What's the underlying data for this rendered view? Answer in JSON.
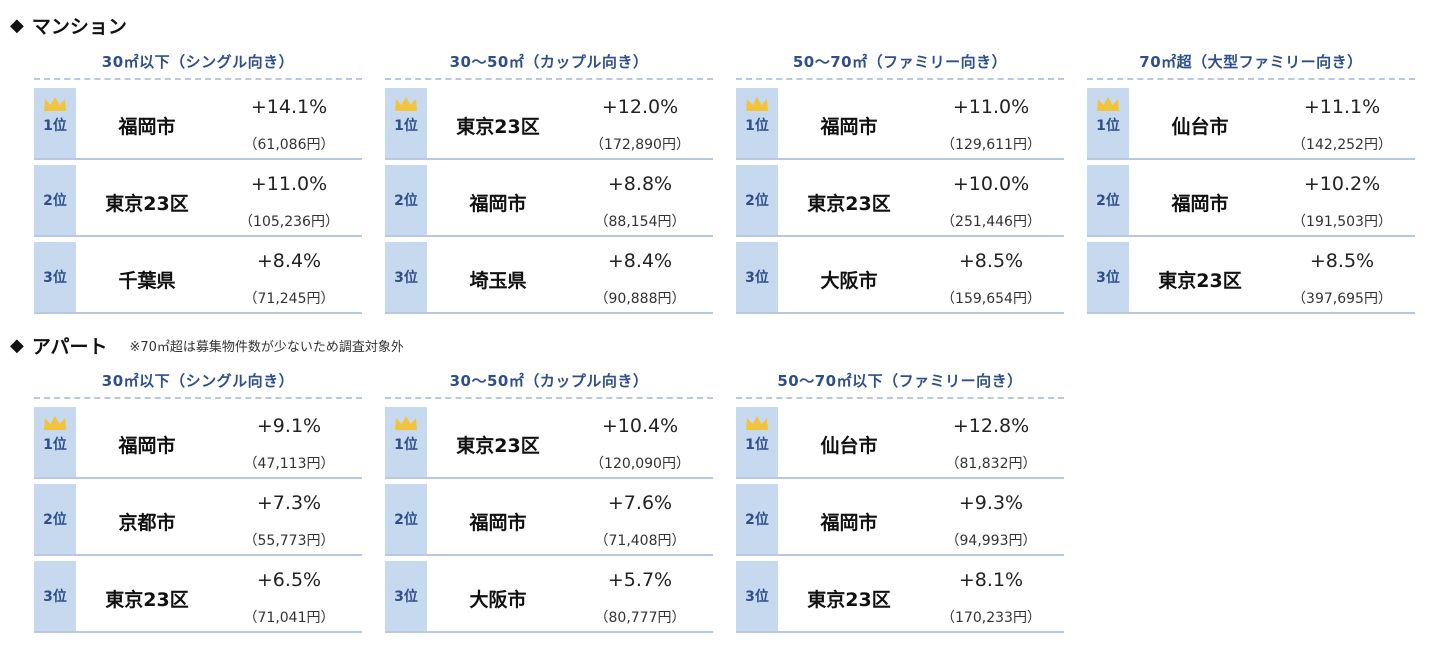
{
  "colors": {
    "accent": "#2f4f8a",
    "rank_bg": "#c7d9ee",
    "divider": "#b9c7df",
    "crown": "#f2c33d"
  },
  "sections": [
    {
      "diamond": "◆",
      "title": "マンション",
      "note": "",
      "panels": [
        {
          "heading": "30㎡以下（シングル向き）",
          "rows": [
            {
              "rank": "1位",
              "city": "福岡市",
              "pct": "+14.1%",
              "price": "（61,086円）"
            },
            {
              "rank": "2位",
              "city": "東京23区",
              "pct": "+11.0%",
              "price": "（105,236円）"
            },
            {
              "rank": "3位",
              "city": "千葉県",
              "pct": "+8.4%",
              "price": "（71,245円）"
            }
          ]
        },
        {
          "heading": "30～50㎡（カップル向き）",
          "rows": [
            {
              "rank": "1位",
              "city": "東京23区",
              "pct": "+12.0%",
              "price": "（172,890円）"
            },
            {
              "rank": "2位",
              "city": "福岡市",
              "pct": "+8.8%",
              "price": "（88,154円）"
            },
            {
              "rank": "3位",
              "city": "埼玉県",
              "pct": "+8.4%",
              "price": "（90,888円）"
            }
          ]
        },
        {
          "heading": "50～70㎡（ファミリー向き）",
          "rows": [
            {
              "rank": "1位",
              "city": "福岡市",
              "pct": "+11.0%",
              "price": "（129,611円）"
            },
            {
              "rank": "2位",
              "city": "東京23区",
              "pct": "+10.0%",
              "price": "（251,446円）"
            },
            {
              "rank": "3位",
              "city": "大阪市",
              "pct": "+8.5%",
              "price": "（159,654円）"
            }
          ]
        },
        {
          "heading": "70㎡超（大型ファミリー向き）",
          "rows": [
            {
              "rank": "1位",
              "city": "仙台市",
              "pct": "+11.1%",
              "price": "（142,252円）"
            },
            {
              "rank": "2位",
              "city": "福岡市",
              "pct": "+10.2%",
              "price": "（191,503円）"
            },
            {
              "rank": "3位",
              "city": "東京23区",
              "pct": "+8.5%",
              "price": "（397,695円）"
            }
          ]
        }
      ]
    },
    {
      "diamond": "◆",
      "title": "アパート",
      "note": "※70㎡超は募集物件数が少ないため調査対象外",
      "panels": [
        {
          "heading": "30㎡以下（シングル向き）",
          "rows": [
            {
              "rank": "1位",
              "city": "福岡市",
              "pct": "+9.1%",
              "price": "（47,113円）"
            },
            {
              "rank": "2位",
              "city": "京都市",
              "pct": "+7.3%",
              "price": "（55,773円）"
            },
            {
              "rank": "3位",
              "city": "東京23区",
              "pct": "+6.5%",
              "price": "（71,041円）"
            }
          ]
        },
        {
          "heading": "30～50㎡（カップル向き）",
          "rows": [
            {
              "rank": "1位",
              "city": "東京23区",
              "pct": "+10.4%",
              "price": "（120,090円）"
            },
            {
              "rank": "2位",
              "city": "福岡市",
              "pct": "+7.6%",
              "price": "（71,408円）"
            },
            {
              "rank": "3位",
              "city": "大阪市",
              "pct": "+5.7%",
              "price": "（80,777円）"
            }
          ]
        },
        {
          "heading": "50～70㎡以下（ファミリー向き）",
          "rows": [
            {
              "rank": "1位",
              "city": "仙台市",
              "pct": "+12.8%",
              "price": "（81,832円）"
            },
            {
              "rank": "2位",
              "city": "福岡市",
              "pct": "+9.3%",
              "price": "（94,993円）"
            },
            {
              "rank": "3位",
              "city": "東京23区",
              "pct": "+8.1%",
              "price": "（170,233円）"
            }
          ]
        }
      ]
    }
  ]
}
